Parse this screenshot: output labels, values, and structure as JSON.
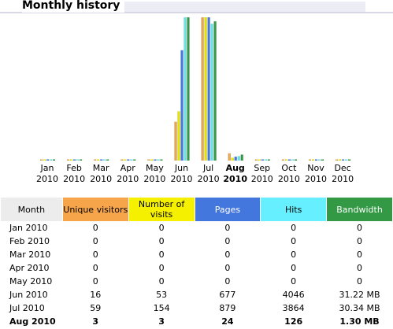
{
  "page_title": "Monthly history",
  "colors": {
    "unique_visitors": "#f6a54a",
    "visits": "#f5f000",
    "pages": "#4477dd",
    "hits": "#66f0ff",
    "bandwidth": "#339944",
    "month_header": "#ececec"
  },
  "chart_data": {
    "type": "bar",
    "categories": [
      "Jan 2010",
      "Feb 2010",
      "Mar 2010",
      "Apr 2010",
      "May 2010",
      "Jun 2010",
      "Jul 2010",
      "Aug 2010",
      "Sep 2010",
      "Oct 2010",
      "Nov 2010",
      "Dec 2010"
    ],
    "category_labels": [
      {
        "month": "Jan",
        "year": "2010"
      },
      {
        "month": "Feb",
        "year": "2010"
      },
      {
        "month": "Mar",
        "year": "2010"
      },
      {
        "month": "Apr",
        "year": "2010"
      },
      {
        "month": "May",
        "year": "2010"
      },
      {
        "month": "Jun",
        "year": "2010"
      },
      {
        "month": "Jul",
        "year": "2010"
      },
      {
        "month": "Aug",
        "year": "2010"
      },
      {
        "month": "Sep",
        "year": "2010"
      },
      {
        "month": "Oct",
        "year": "2010"
      },
      {
        "month": "Nov",
        "year": "2010"
      },
      {
        "month": "Dec",
        "year": "2010"
      }
    ],
    "highlighted_category": "Aug 2010",
    "series": [
      {
        "name": "Unique visitors",
        "color": "#f6a54a",
        "values": [
          0,
          0,
          0,
          0,
          0,
          16,
          59,
          3,
          0,
          0,
          0,
          0
        ]
      },
      {
        "name": "Number of visits",
        "color": "#f5f000",
        "values": [
          0,
          0,
          0,
          0,
          0,
          53,
          154,
          3,
          0,
          0,
          0,
          0
        ]
      },
      {
        "name": "Pages",
        "color": "#4477dd",
        "values": [
          0,
          0,
          0,
          0,
          0,
          677,
          879,
          24,
          0,
          0,
          0,
          0
        ]
      },
      {
        "name": "Hits",
        "color": "#66f0ff",
        "values": [
          0,
          0,
          0,
          0,
          0,
          4046,
          3864,
          126,
          0,
          0,
          0,
          0
        ]
      },
      {
        "name": "Bandwidth",
        "color": "#339944",
        "values": [
          0,
          0,
          0,
          0,
          0,
          31.22,
          30.34,
          1.3,
          0,
          0,
          0,
          0
        ]
      }
    ]
  },
  "table": {
    "headers": [
      {
        "label": "Month",
        "color": "#ececec"
      },
      {
        "label": "Unique visitors",
        "color": "#f6a54a"
      },
      {
        "label": "Number of visits",
        "color": "#f5f000"
      },
      {
        "label": "Pages",
        "color": "#4477dd"
      },
      {
        "label": "Hits",
        "color": "#66f0ff"
      },
      {
        "label": "Bandwidth",
        "color": "#339944"
      }
    ],
    "rows": [
      {
        "month": "Jan 2010",
        "unique": "0",
        "visits": "0",
        "pages": "0",
        "hits": "0",
        "bandwidth": "0",
        "bold": false
      },
      {
        "month": "Feb 2010",
        "unique": "0",
        "visits": "0",
        "pages": "0",
        "hits": "0",
        "bandwidth": "0",
        "bold": false
      },
      {
        "month": "Mar 2010",
        "unique": "0",
        "visits": "0",
        "pages": "0",
        "hits": "0",
        "bandwidth": "0",
        "bold": false
      },
      {
        "month": "Apr 2010",
        "unique": "0",
        "visits": "0",
        "pages": "0",
        "hits": "0",
        "bandwidth": "0",
        "bold": false
      },
      {
        "month": "May 2010",
        "unique": "0",
        "visits": "0",
        "pages": "0",
        "hits": "0",
        "bandwidth": "0",
        "bold": false
      },
      {
        "month": "Jun 2010",
        "unique": "16",
        "visits": "53",
        "pages": "677",
        "hits": "4046",
        "bandwidth": "31.22 MB",
        "bold": false
      },
      {
        "month": "Jul 2010",
        "unique": "59",
        "visits": "154",
        "pages": "879",
        "hits": "3864",
        "bandwidth": "30.34 MB",
        "bold": false
      },
      {
        "month": "Aug 2010",
        "unique": "3",
        "visits": "3",
        "pages": "24",
        "hits": "126",
        "bandwidth": "1.30 MB",
        "bold": true
      }
    ]
  }
}
